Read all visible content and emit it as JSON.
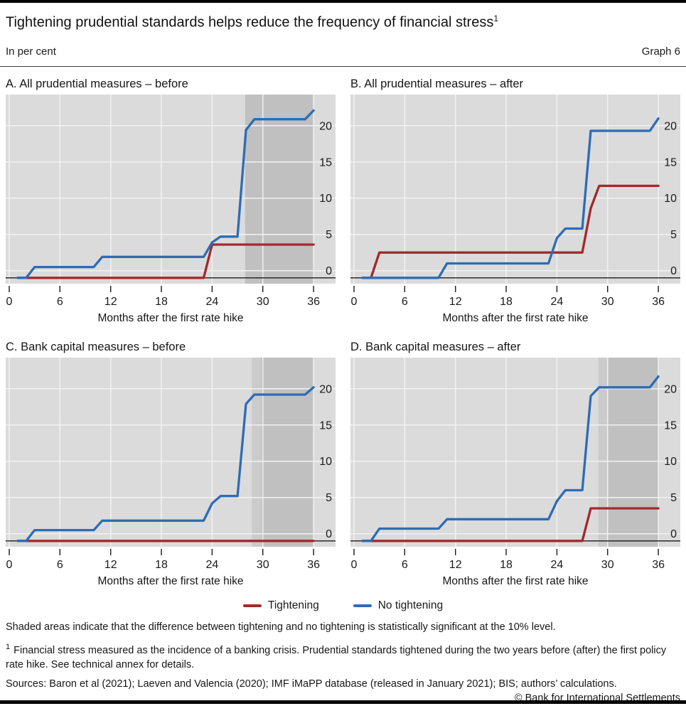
{
  "page": {
    "title": "Tightening prudential standards helps reduce the frequency of financial stress",
    "title_superscript": "1",
    "unit_label": "In per cent",
    "graph_label": "Graph 6",
    "shaded_note": "Shaded areas indicate that the difference between tightening and no tightening is statistically significant at the 10% level.",
    "footnote_marker": "1",
    "footnote_text": "Financial stress measured as the incidence of a banking crisis. Prudential standards tightened during the two years before (after) the first policy rate hike. See technical annex for details.",
    "sources": "Sources: Baron et al (2021); Laeven and Valencia (2020); IMF iMaPP database (released in January 2021); BIS; authors’ calculations.",
    "copyright": "© Bank for International Settlements"
  },
  "legend": {
    "items": [
      {
        "name": "tightening",
        "label": "Tightening",
        "color": "#a3282d"
      },
      {
        "name": "no-tightening",
        "label": "No tightening",
        "color": "#2d6cb4"
      }
    ]
  },
  "style": {
    "plot_bg": "#dbdbdb",
    "grid_color": "#f2f2f2",
    "band_light": "#cbcbcb",
    "band_dark": "#c0c0c0",
    "axis_color": "#1a1a1a",
    "baseline_value": -1
  },
  "chart_data": [
    {
      "type": "line",
      "panel_label": "A. All prudential measures – before",
      "xlabel": "Months after the first rate hike",
      "xticks": [
        0,
        6,
        12,
        18,
        24,
        30,
        36
      ],
      "yticks": [
        0,
        5,
        10,
        15,
        20
      ],
      "xlim": [
        -0.42,
        38.6
      ],
      "ylim": [
        -1.8,
        24.3
      ],
      "significance_bands": [
        {
          "from": 27.9,
          "to": 36,
          "shade": "dark"
        }
      ],
      "series": [
        {
          "name": "Tightening",
          "points": [
            [
              1,
              -1
            ],
            [
              23,
              -1
            ],
            [
              24,
              3.6
            ],
            [
              36,
              3.6
            ]
          ]
        },
        {
          "name": "No tightening",
          "points": [
            [
              1,
              -1
            ],
            [
              2,
              -1
            ],
            [
              3,
              0.5
            ],
            [
              10,
              0.5
            ],
            [
              11,
              1.9
            ],
            [
              23,
              1.9
            ],
            [
              24,
              3.9
            ],
            [
              25,
              4.7
            ],
            [
              27,
              4.7
            ],
            [
              28,
              19.4
            ],
            [
              29,
              20.9
            ],
            [
              35,
              20.9
            ],
            [
              36,
              22.1
            ]
          ]
        }
      ]
    },
    {
      "type": "line",
      "panel_label": "B. All prudential measures – after",
      "xlabel": "Months after the first rate hike",
      "xticks": [
        0,
        6,
        12,
        18,
        24,
        30,
        36
      ],
      "yticks": [
        0,
        5,
        10,
        15,
        20
      ],
      "xlim": [
        -0.42,
        38.6
      ],
      "ylim": [
        -1.8,
        24.3
      ],
      "significance_bands": [],
      "series": [
        {
          "name": "Tightening",
          "points": [
            [
              1,
              -1
            ],
            [
              2,
              -1
            ],
            [
              3,
              2.5
            ],
            [
              27,
              2.5
            ],
            [
              28,
              8.6
            ],
            [
              29,
              11.7
            ],
            [
              36,
              11.7
            ]
          ]
        },
        {
          "name": "No tightening",
          "points": [
            [
              1,
              -1
            ],
            [
              10,
              -1
            ],
            [
              11,
              1.0
            ],
            [
              23,
              1.0
            ],
            [
              24,
              4.5
            ],
            [
              25,
              5.8
            ],
            [
              27,
              5.8
            ],
            [
              28,
              19.3
            ],
            [
              35,
              19.3
            ],
            [
              36,
              21.0
            ]
          ]
        }
      ]
    },
    {
      "type": "line",
      "panel_label": "C. Bank capital measures – before",
      "xlabel": "Months after the first rate hike",
      "xticks": [
        0,
        6,
        12,
        18,
        24,
        30,
        36
      ],
      "yticks": [
        0,
        5,
        10,
        15,
        20
      ],
      "xlim": [
        -0.42,
        38.6
      ],
      "ylim": [
        -1.8,
        24.3
      ],
      "significance_bands": [
        {
          "from": 28.7,
          "to": 29.8,
          "shade": "light"
        },
        {
          "from": 29.8,
          "to": 36,
          "shade": "dark"
        }
      ],
      "series": [
        {
          "name": "Tightening",
          "points": [
            [
              1,
              -1
            ],
            [
              36,
              -1
            ]
          ]
        },
        {
          "name": "No tightening",
          "points": [
            [
              1,
              -1
            ],
            [
              2,
              -1
            ],
            [
              3,
              0.5
            ],
            [
              10,
              0.5
            ],
            [
              11,
              1.8
            ],
            [
              23,
              1.8
            ],
            [
              24,
              4.2
            ],
            [
              25,
              5.2
            ],
            [
              27,
              5.2
            ],
            [
              28,
              17.9
            ],
            [
              29,
              19.2
            ],
            [
              35,
              19.2
            ],
            [
              36,
              20.2
            ]
          ]
        }
      ]
    },
    {
      "type": "line",
      "panel_label": "D. Bank capital measures – after",
      "xlabel": "Months after the first rate hike",
      "xticks": [
        0,
        6,
        12,
        18,
        24,
        30,
        36
      ],
      "yticks": [
        0,
        5,
        10,
        15,
        20
      ],
      "xlim": [
        -0.42,
        38.6
      ],
      "ylim": [
        -1.8,
        24.3
      ],
      "significance_bands": [
        {
          "from": 28.9,
          "to": 30,
          "shade": "light"
        },
        {
          "from": 30,
          "to": 36,
          "shade": "dark"
        }
      ],
      "series": [
        {
          "name": "Tightening",
          "points": [
            [
              1,
              -1
            ],
            [
              27,
              -1
            ],
            [
              28,
              3.5
            ],
            [
              36,
              3.5
            ]
          ]
        },
        {
          "name": "No tightening",
          "points": [
            [
              1,
              -1
            ],
            [
              2,
              -1
            ],
            [
              3,
              0.7
            ],
            [
              10,
              0.7
            ],
            [
              11,
              2.0
            ],
            [
              23,
              2.0
            ],
            [
              24,
              4.5
            ],
            [
              25,
              6.0
            ],
            [
              27,
              6.0
            ],
            [
              28,
              19.0
            ],
            [
              29,
              20.2
            ],
            [
              35,
              20.2
            ],
            [
              36,
              21.7
            ]
          ]
        }
      ]
    }
  ]
}
